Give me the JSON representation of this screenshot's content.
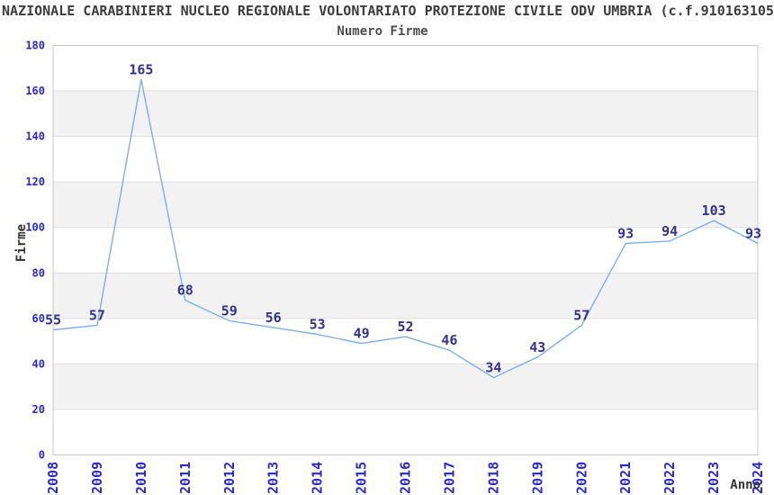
{
  "header": {
    "title": "NAZIONALE CARABINIERI NUCLEO REGIONALE VOLONTARIATO PROTEZIONE CIVILE ODV UMBRIA (c.f.910163105",
    "subtitle": "Numero Firme"
  },
  "chart_data": {
    "type": "line",
    "title": "Numero Firme",
    "categories": [
      "2008",
      "2009",
      "2010",
      "2011",
      "2012",
      "2013",
      "2014",
      "2015",
      "2016",
      "2017",
      "2018",
      "2019",
      "2020",
      "2021",
      "2022",
      "2023",
      "2024"
    ],
    "values": [
      55,
      57,
      165,
      68,
      59,
      56,
      53,
      49,
      52,
      46,
      34,
      43,
      57,
      93,
      94,
      103,
      93
    ],
    "xlabel": "Anno",
    "ylabel": "Firme",
    "ylim": [
      0,
      180
    ],
    "ytick_step": 20,
    "yticks": [
      0,
      20,
      40,
      60,
      80,
      100,
      120,
      140,
      160,
      180
    ],
    "grid": "horizontal gridlines with alternating shaded bands",
    "legend_position": "none",
    "data_labels": "shown above each point",
    "colors": {
      "line": "#7DAFE4",
      "data_label": "#32328F",
      "axis_tick_label": "#2828CE",
      "band": "#F2F2F2",
      "gridline": "#E0E0E0",
      "plot_border": "#C9C9C9",
      "title_text": "#3D3D3D"
    }
  }
}
